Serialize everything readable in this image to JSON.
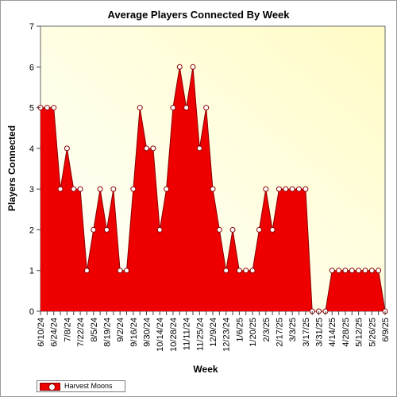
{
  "chart_data": {
    "type": "area",
    "title": "Average Players Connected By Week",
    "xlabel": "Week",
    "ylabel": "Players Connected",
    "ylim": [
      0,
      7
    ],
    "yticks": [
      0,
      1,
      2,
      3,
      4,
      5,
      6,
      7
    ],
    "grid": false,
    "legend_position": "bottom-left",
    "background": "#fffde8",
    "colors": {
      "area": "#ee0000",
      "line": "#8a0000",
      "marker_fill": "#ffffff"
    },
    "x": [
      "6/10/24",
      "6/17/24",
      "6/24/24",
      "7/1/24",
      "7/8/24",
      "7/15/24",
      "7/22/24",
      "7/29/24",
      "8/5/24",
      "8/12/24",
      "8/19/24",
      "8/26/24",
      "9/2/24",
      "9/9/24",
      "9/16/24",
      "9/23/24",
      "9/30/24",
      "10/7/24",
      "10/14/24",
      "10/21/24",
      "10/28/24",
      "11/4/24",
      "11/11/24",
      "11/18/24",
      "11/25/24",
      "12/2/24",
      "12/9/24",
      "12/16/24",
      "12/23/24",
      "12/30/24",
      "1/6/25",
      "1/13/25",
      "1/20/25",
      "1/27/25",
      "2/3/25",
      "2/10/25",
      "2/17/25",
      "2/24/25",
      "3/3/25",
      "3/10/25",
      "3/17/25",
      "3/24/25",
      "3/31/25",
      "4/7/25",
      "4/14/25",
      "4/21/25",
      "4/28/25",
      "5/5/25",
      "5/12/25",
      "5/19/25",
      "5/26/25",
      "6/2/25",
      "6/9/25"
    ],
    "x_tick_labels": [
      "6/10/24",
      "6/24/24",
      "7/8/24",
      "7/22/24",
      "8/5/24",
      "8/19/24",
      "9/2/24",
      "9/16/24",
      "9/30/24",
      "10/14/24",
      "10/28/24",
      "11/11/24",
      "11/25/24",
      "12/9/24",
      "12/23/24",
      "1/6/25",
      "1/20/25",
      "2/3/25",
      "2/17/25",
      "3/3/25",
      "3/17/25",
      "3/31/25",
      "4/14/25",
      "4/28/25",
      "5/12/25",
      "5/26/25",
      "6/9/25"
    ],
    "series": [
      {
        "name": "Harvest Moons",
        "values": [
          5,
          5,
          5,
          3,
          4,
          3,
          3,
          1,
          2,
          3,
          2,
          3,
          1,
          1,
          3,
          5,
          4,
          4,
          2,
          3,
          5,
          6,
          5,
          6,
          4,
          5,
          3,
          2,
          1,
          2,
          1,
          1,
          1,
          2,
          3,
          2,
          3,
          3,
          3,
          3,
          3,
          0,
          0,
          0,
          1,
          1,
          1,
          1,
          1,
          1,
          1,
          1,
          0
        ]
      }
    ]
  }
}
